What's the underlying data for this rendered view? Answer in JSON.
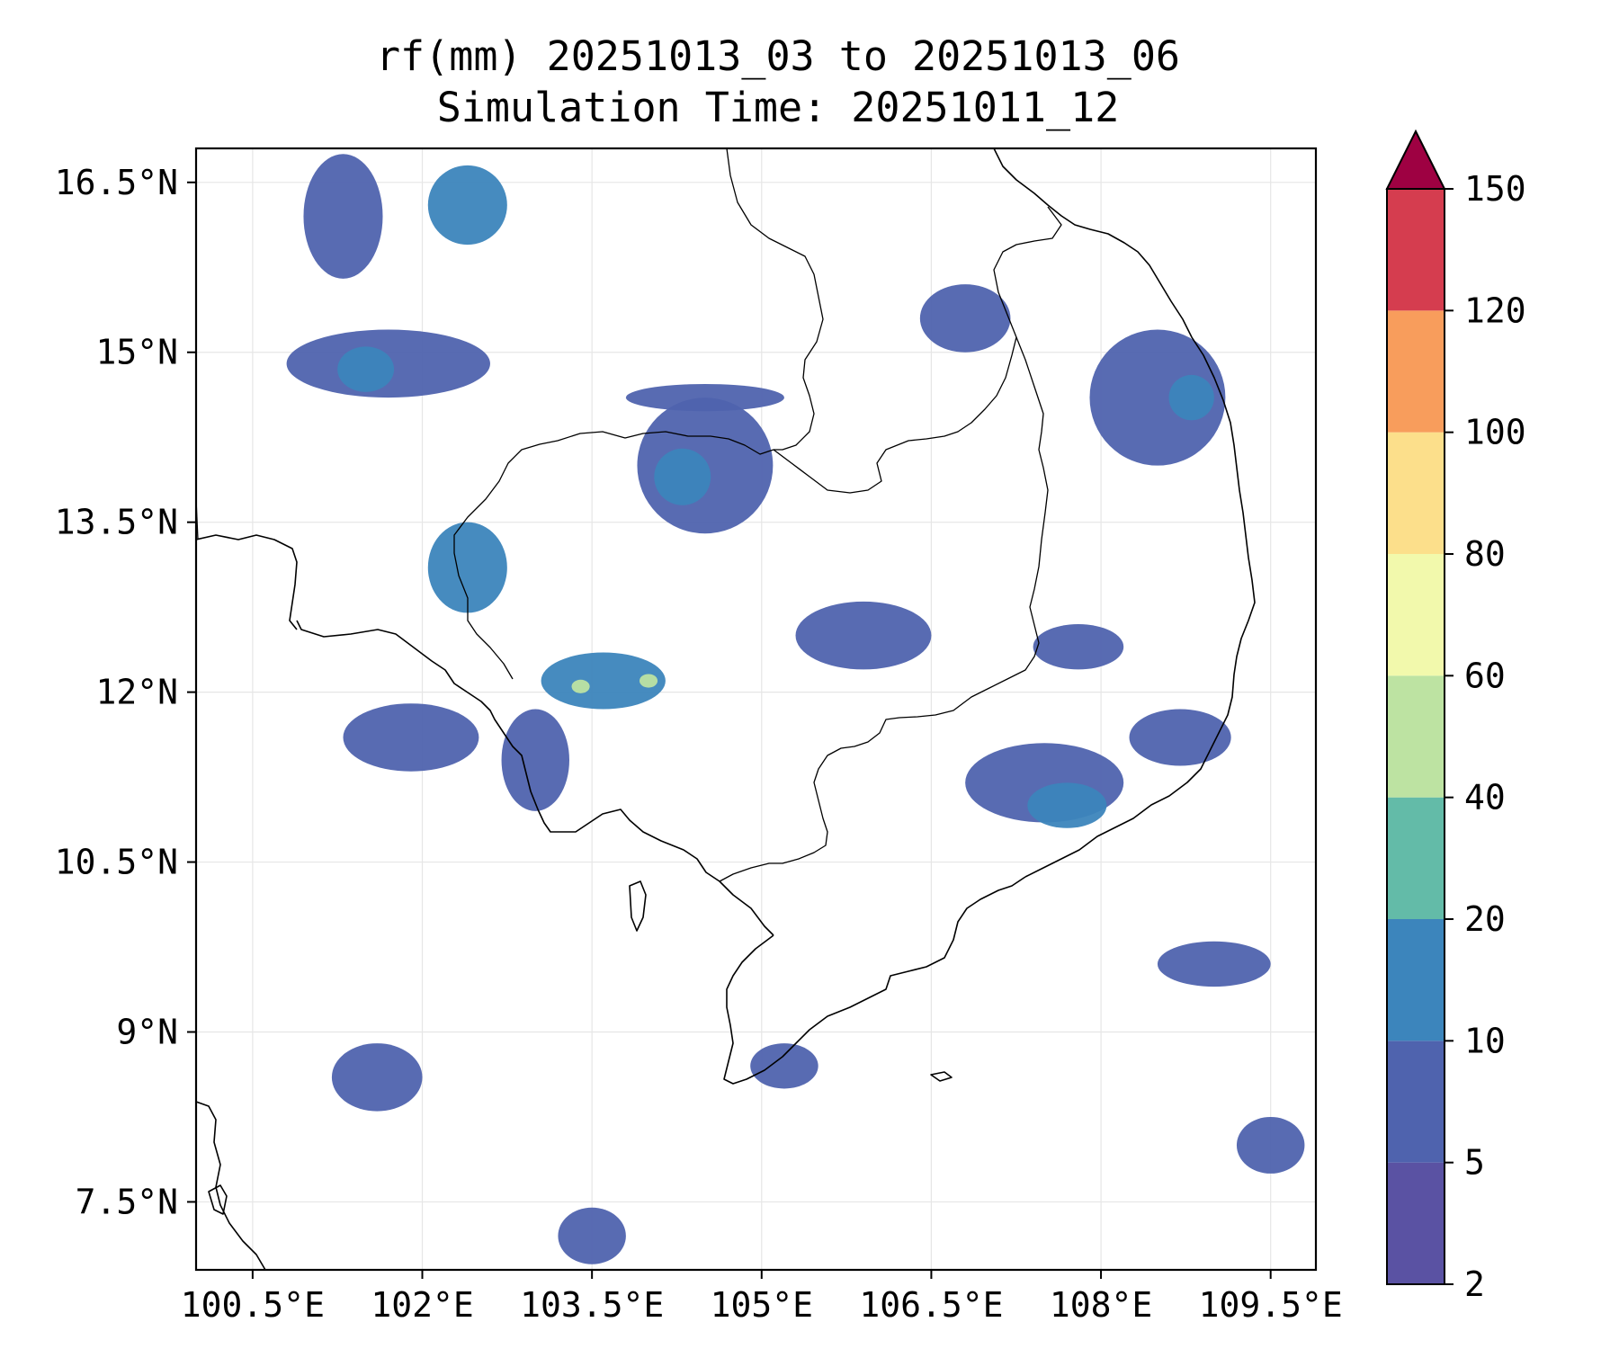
{
  "title": {
    "line1": "rf(mm) 20251013_03 to 20251013_06",
    "line2": "Simulation Time: 20251011_12"
  },
  "map": {
    "lon_range": [
      100.0,
      109.9
    ],
    "lat_range": [
      6.9,
      16.8
    ],
    "x_ticks": [
      {
        "value": 100.5,
        "label": "100.5°E"
      },
      {
        "value": 102.0,
        "label": "102°E"
      },
      {
        "value": 103.5,
        "label": "103.5°E"
      },
      {
        "value": 105.0,
        "label": "105°E"
      },
      {
        "value": 106.5,
        "label": "106.5°E"
      },
      {
        "value": 108.0,
        "label": "108°E"
      },
      {
        "value": 109.5,
        "label": "109.5°E"
      }
    ],
    "y_ticks": [
      {
        "value": 16.5,
        "label": "16.5°N"
      },
      {
        "value": 15.0,
        "label": "15°N"
      },
      {
        "value": 13.5,
        "label": "13.5°N"
      },
      {
        "value": 12.0,
        "label": "12°N"
      },
      {
        "value": 10.5,
        "label": "10.5°N"
      },
      {
        "value": 9.0,
        "label": "9°N"
      },
      {
        "value": 7.5,
        "label": "7.5°N"
      }
    ],
    "rain_blobs": [
      {
        "lon": 101.3,
        "lat": 16.2,
        "rlon": 0.35,
        "rlat": 0.55,
        "level": 1
      },
      {
        "lon": 102.4,
        "lat": 16.3,
        "rlon": 0.35,
        "rlat": 0.35,
        "level": 2
      },
      {
        "lon": 101.7,
        "lat": 14.9,
        "rlon": 0.9,
        "rlat": 0.3,
        "level": 1
      },
      {
        "lon": 101.5,
        "lat": 14.85,
        "rlon": 0.25,
        "rlat": 0.2,
        "level": 2
      },
      {
        "lon": 104.5,
        "lat": 14.0,
        "rlon": 0.6,
        "rlat": 0.6,
        "level": 1
      },
      {
        "lon": 104.3,
        "lat": 13.9,
        "rlon": 0.25,
        "rlat": 0.25,
        "level": 2
      },
      {
        "lon": 102.4,
        "lat": 13.1,
        "rlon": 0.35,
        "rlat": 0.4,
        "level": 2
      },
      {
        "lon": 103.6,
        "lat": 12.1,
        "rlon": 0.55,
        "rlat": 0.25,
        "level": 2
      },
      {
        "lon": 103.4,
        "lat": 12.05,
        "rlon": 0.08,
        "rlat": 0.06,
        "level": 4
      },
      {
        "lon": 104.0,
        "lat": 12.1,
        "rlon": 0.08,
        "rlat": 0.06,
        "level": 4
      },
      {
        "lon": 101.9,
        "lat": 11.6,
        "rlon": 0.6,
        "rlat": 0.3,
        "level": 1
      },
      {
        "lon": 103.0,
        "lat": 11.4,
        "rlon": 0.3,
        "rlat": 0.45,
        "level": 1
      },
      {
        "lon": 106.8,
        "lat": 15.3,
        "rlon": 0.4,
        "rlat": 0.3,
        "level": 1
      },
      {
        "lon": 108.5,
        "lat": 14.6,
        "rlon": 0.6,
        "rlat": 0.6,
        "level": 1
      },
      {
        "lon": 108.8,
        "lat": 14.6,
        "rlon": 0.2,
        "rlat": 0.2,
        "level": 2
      },
      {
        "lon": 107.5,
        "lat": 11.2,
        "rlon": 0.7,
        "rlat": 0.35,
        "level": 1
      },
      {
        "lon": 107.7,
        "lat": 11.0,
        "rlon": 0.35,
        "rlat": 0.2,
        "level": 2
      },
      {
        "lon": 108.7,
        "lat": 11.6,
        "rlon": 0.45,
        "rlat": 0.25,
        "level": 1
      },
      {
        "lon": 107.8,
        "lat": 12.4,
        "rlon": 0.4,
        "rlat": 0.2,
        "level": 1
      },
      {
        "lon": 105.9,
        "lat": 12.5,
        "rlon": 0.6,
        "rlat": 0.3,
        "level": 1
      },
      {
        "lon": 104.5,
        "lat": 14.6,
        "rlon": 0.7,
        "rlat": 0.12,
        "level": 1
      },
      {
        "lon": 101.6,
        "lat": 8.6,
        "rlon": 0.4,
        "rlat": 0.3,
        "level": 1
      },
      {
        "lon": 105.2,
        "lat": 8.7,
        "rlon": 0.3,
        "rlat": 0.2,
        "level": 1
      },
      {
        "lon": 109.0,
        "lat": 9.6,
        "rlon": 0.5,
        "rlat": 0.2,
        "level": 1
      },
      {
        "lon": 109.5,
        "lat": 8.0,
        "rlon": 0.3,
        "rlat": 0.25,
        "level": 1
      },
      {
        "lon": 103.5,
        "lat": 7.2,
        "rlon": 0.3,
        "rlat": 0.25,
        "level": 1
      }
    ]
  },
  "colorbar": {
    "levels": [
      "2",
      "5",
      "10",
      "20",
      "40",
      "60",
      "80",
      "100",
      "120",
      "150"
    ],
    "colors": [
      "#5a52a3",
      "#4f63ae",
      "#3c85bc",
      "#63bba8",
      "#bde3a2",
      "#f2f9ac",
      "#fcdf8b",
      "#f89d5c",
      "#d53d4f"
    ],
    "extend_color": "#9e0142"
  },
  "colors": {
    "coastline": "#000000",
    "grid": "#e6e6e6"
  }
}
